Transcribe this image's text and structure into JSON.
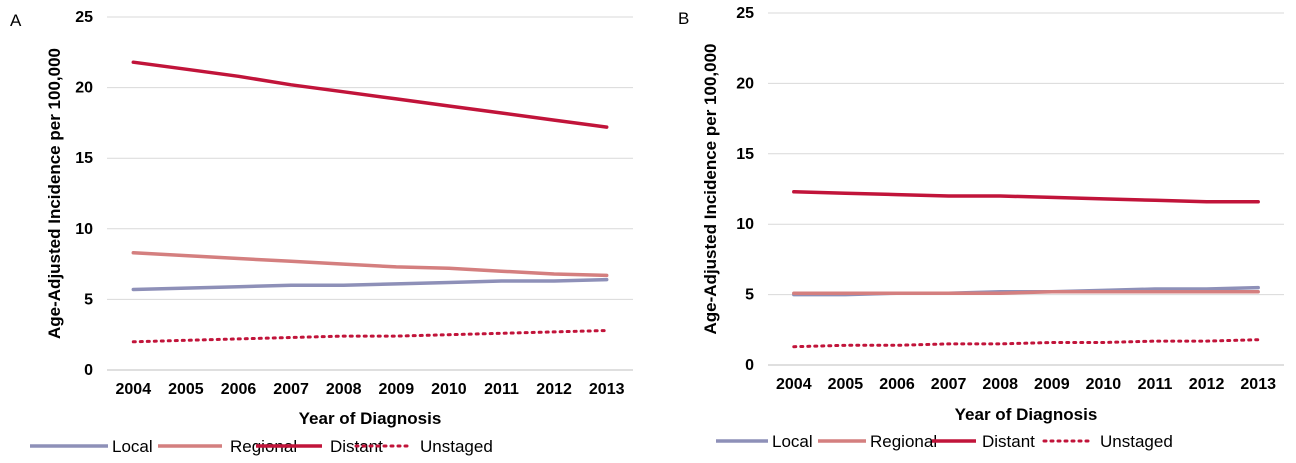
{
  "chart_data": [
    {
      "panel": "A",
      "type": "line",
      "xlabel": "Year of Diagnosis",
      "ylabel": "Age-Adjusted Incidence per 100,000",
      "ylim": [
        0,
        25
      ],
      "yticks": [
        "0",
        "5",
        "10",
        "15",
        "20",
        "25"
      ],
      "categories": [
        "2004",
        "2005",
        "2006",
        "2007",
        "2008",
        "2009",
        "2010",
        "2011",
        "2012",
        "2013"
      ],
      "grid": true,
      "legend_position": "bottom",
      "series": [
        {
          "name": "Local",
          "color": "#8e90b8",
          "dash": "solid",
          "values": [
            5.7,
            5.8,
            5.9,
            6.0,
            6.0,
            6.1,
            6.2,
            6.3,
            6.3,
            6.4
          ]
        },
        {
          "name": "Regional",
          "color": "#d47f7f",
          "dash": "solid",
          "values": [
            8.3,
            8.1,
            7.9,
            7.7,
            7.5,
            7.3,
            7.2,
            7.0,
            6.8,
            6.7
          ]
        },
        {
          "name": "Distant",
          "color": "#c1143a",
          "dash": "solid",
          "values": [
            21.8,
            21.3,
            20.8,
            20.2,
            19.7,
            19.2,
            18.7,
            18.2,
            17.7,
            17.2
          ]
        },
        {
          "name": "Unstaged",
          "color": "#c1143a",
          "dash": "dotted",
          "values": [
            2.0,
            2.1,
            2.2,
            2.3,
            2.4,
            2.4,
            2.5,
            2.6,
            2.7,
            2.8
          ]
        }
      ]
    },
    {
      "panel": "B",
      "type": "line",
      "xlabel": "Year of Diagnosis",
      "ylabel": "Age-Adjusted Incidence per 100,000",
      "ylim": [
        0,
        25
      ],
      "yticks": [
        "0",
        "5",
        "10",
        "15",
        "20",
        "25"
      ],
      "categories": [
        "2004",
        "2005",
        "2006",
        "2007",
        "2008",
        "2009",
        "2010",
        "2011",
        "2012",
        "2013"
      ],
      "grid": true,
      "legend_position": "bottom",
      "series": [
        {
          "name": "Local",
          "color": "#8e90b8",
          "dash": "solid",
          "values": [
            5.0,
            5.0,
            5.1,
            5.1,
            5.2,
            5.2,
            5.3,
            5.4,
            5.4,
            5.5
          ]
        },
        {
          "name": "Regional",
          "color": "#d47f7f",
          "dash": "solid",
          "values": [
            5.1,
            5.1,
            5.1,
            5.1,
            5.1,
            5.2,
            5.2,
            5.2,
            5.2,
            5.2
          ]
        },
        {
          "name": "Distant",
          "color": "#c1143a",
          "dash": "solid",
          "values": [
            12.3,
            12.2,
            12.1,
            12.0,
            12.0,
            11.9,
            11.8,
            11.7,
            11.6,
            11.6
          ]
        },
        {
          "name": "Unstaged",
          "color": "#c1143a",
          "dash": "dotted",
          "values": [
            1.3,
            1.4,
            1.4,
            1.5,
            1.5,
            1.6,
            1.6,
            1.7,
            1.7,
            1.8
          ]
        }
      ]
    }
  ]
}
